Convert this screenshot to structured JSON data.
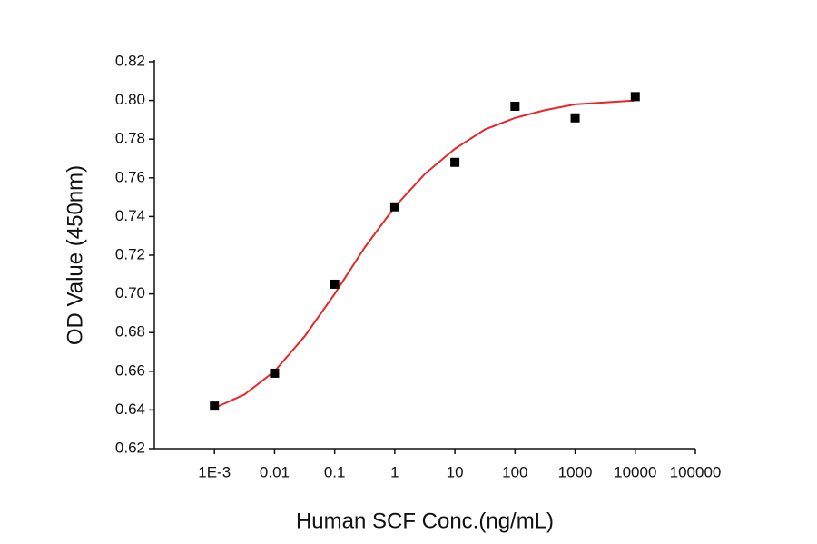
{
  "chart_data": {
    "type": "scatter",
    "x_label": "Human SCF Conc.(ng/mL)",
    "y_label": "OD Value (450nm)",
    "xscale": "log",
    "xlim": [
      0.0001,
      100000
    ],
    "xticks": [
      {
        "value": 0.001,
        "label": "1E-3"
      },
      0.01,
      0.1,
      1,
      10,
      100,
      1000,
      10000,
      100000
    ],
    "ylim": [
      0.62,
      0.82
    ],
    "yticks": [
      0.62,
      0.64,
      0.66,
      0.68,
      {
        "value": 0.7,
        "label": "0.70"
      },
      0.72,
      0.74,
      0.76,
      0.78,
      {
        "value": 0.8,
        "label": "0.80"
      },
      0.82
    ],
    "grid": false,
    "series": [
      {
        "mode": "markers",
        "color": "#000000",
        "x": [
          0.001,
          0.01,
          0.1,
          1,
          10,
          100,
          1000,
          10000
        ],
        "values": [
          0.642,
          0.659,
          0.705,
          0.745,
          0.768,
          0.797,
          0.791,
          0.802
        ]
      },
      {
        "mode": "line",
        "color": "#e8262a",
        "x": [
          0.001,
          0.00316,
          0.01,
          0.0316,
          0.1,
          0.316,
          1,
          3.16,
          10,
          31.6,
          100,
          316,
          1000,
          3162,
          10000
        ],
        "values": [
          0.641,
          0.648,
          0.66,
          0.678,
          0.7,
          0.724,
          0.745,
          0.762,
          0.775,
          0.785,
          0.791,
          0.795,
          0.798,
          0.799,
          0.8
        ]
      }
    ]
  }
}
